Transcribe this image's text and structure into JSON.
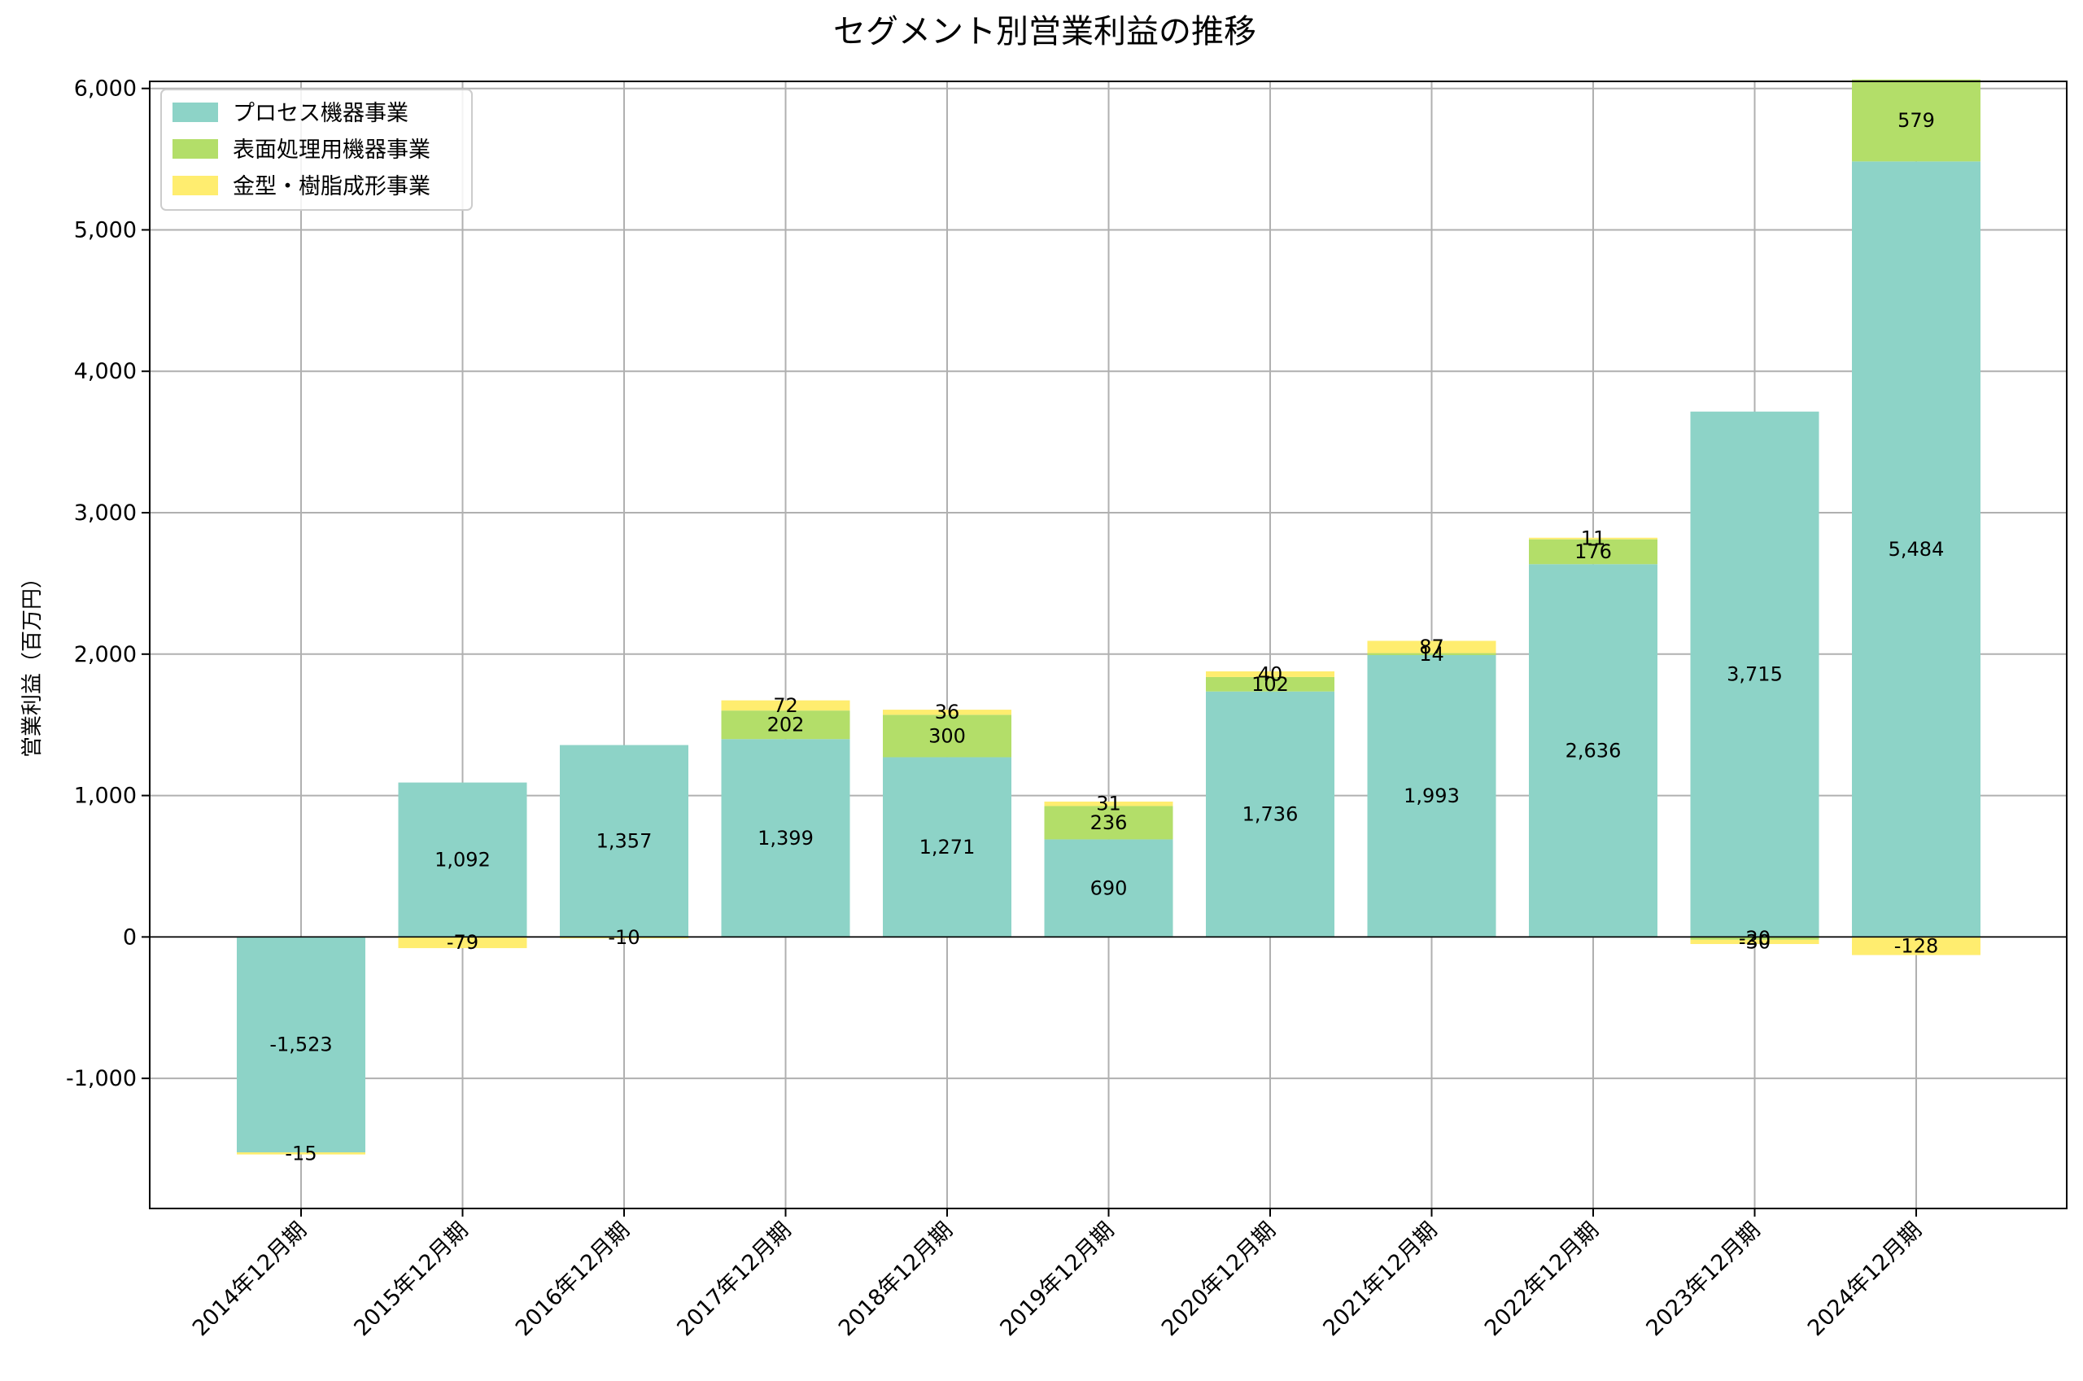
{
  "chart_data": {
    "type": "bar",
    "stacked": true,
    "title": "セグメント別営業利益の推移",
    "xlabel": "",
    "ylabel": "営業利益（百万円）",
    "ylim": [
      -1920,
      6050
    ],
    "yticks": [
      -1000,
      0,
      1000,
      2000,
      3000,
      4000,
      5000,
      6000
    ],
    "ytick_labels": [
      "-1,000",
      "0",
      "1,000",
      "2,000",
      "3,000",
      "4,000",
      "5,000",
      "6,000"
    ],
    "grid": true,
    "legend_position": "top-left",
    "categories": [
      "2014年12月期",
      "2015年12月期",
      "2016年12月期",
      "2017年12月期",
      "2018年12月期",
      "2019年12月期",
      "2020年12月期",
      "2021年12月期",
      "2022年12月期",
      "2023年12月期",
      "2024年12月期"
    ],
    "series": [
      {
        "name": "プロセス機器事業",
        "color": "#8dd3c7",
        "values": [
          -1523,
          1092,
          1357,
          1399,
          1271,
          690,
          1736,
          1993,
          2636,
          3715,
          5484
        ]
      },
      {
        "name": "表面処理用機器事業",
        "color": "#b3de69",
        "values": [
          null,
          null,
          null,
          202,
          300,
          236,
          102,
          14,
          176,
          -20,
          579
        ]
      },
      {
        "name": "金型・樹脂成形事業",
        "color": "#ffed6f",
        "values": [
          -15,
          -79,
          -10,
          72,
          36,
          31,
          40,
          87,
          11,
          -30,
          -128
        ]
      }
    ]
  }
}
